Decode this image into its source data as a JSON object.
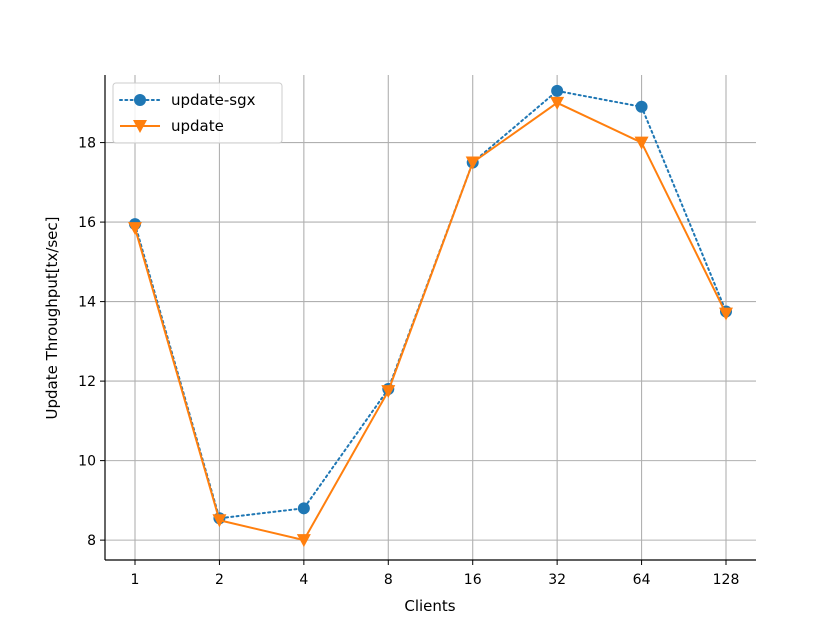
{
  "chart_data": {
    "type": "line",
    "categories": [
      "1",
      "2",
      "4",
      "8",
      "16",
      "32",
      "64",
      "128"
    ],
    "xlabel": "Clients",
    "ylabel": "Update Throughput[tx/sec]",
    "ylim": [
      7.5,
      19.7
    ],
    "yticks": [
      8,
      10,
      12,
      14,
      16,
      18
    ],
    "grid": true,
    "legend_position": "top-left",
    "series": [
      {
        "name": "update-sgx",
        "values": [
          15.95,
          8.55,
          8.8,
          11.8,
          17.5,
          19.3,
          18.9,
          13.75
        ],
        "color": "#1f77b4",
        "line_style": "dotted",
        "marker": "circle"
      },
      {
        "name": "update",
        "values": [
          15.85,
          8.5,
          8.0,
          11.75,
          17.5,
          19.0,
          18.0,
          13.7
        ],
        "color": "#ff7f0e",
        "line_style": "solid",
        "marker": "triangle-down"
      }
    ]
  }
}
